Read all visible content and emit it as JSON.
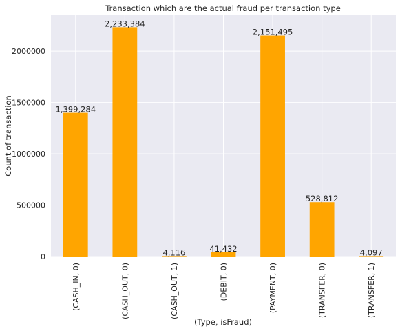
{
  "chart_data": {
    "type": "bar",
    "title": "Transaction which are the actual fraud per transaction type",
    "xlabel": "(Type, isFraud)",
    "ylabel": "Count of transaction",
    "categories": [
      "(CASH_IN, 0)",
      "(CASH_OUT, 0)",
      "(CASH_OUT, 1)",
      "(DEBIT, 0)",
      "(PAYMENT, 0)",
      "(TRANSFER, 0)",
      "(TRANSFER, 1)"
    ],
    "values": [
      1399284,
      2233384,
      4116,
      41432,
      2151495,
      528812,
      4097
    ],
    "data_labels": [
      "1,399,284",
      "2,233,384",
      "4,116",
      "41,432",
      "2,151,495",
      "528,812",
      "4,097"
    ],
    "ylim": [
      0,
      2350000
    ],
    "yticks": [
      0,
      500000,
      1000000,
      1500000,
      2000000
    ],
    "ytick_labels": [
      "0",
      "500000",
      "1000000",
      "1500000",
      "2000000"
    ],
    "grid": true,
    "colors": {
      "bar": "#ffa500",
      "plot_background": "#eaeaf2",
      "grid": "#ffffff",
      "text": "#262626"
    }
  }
}
